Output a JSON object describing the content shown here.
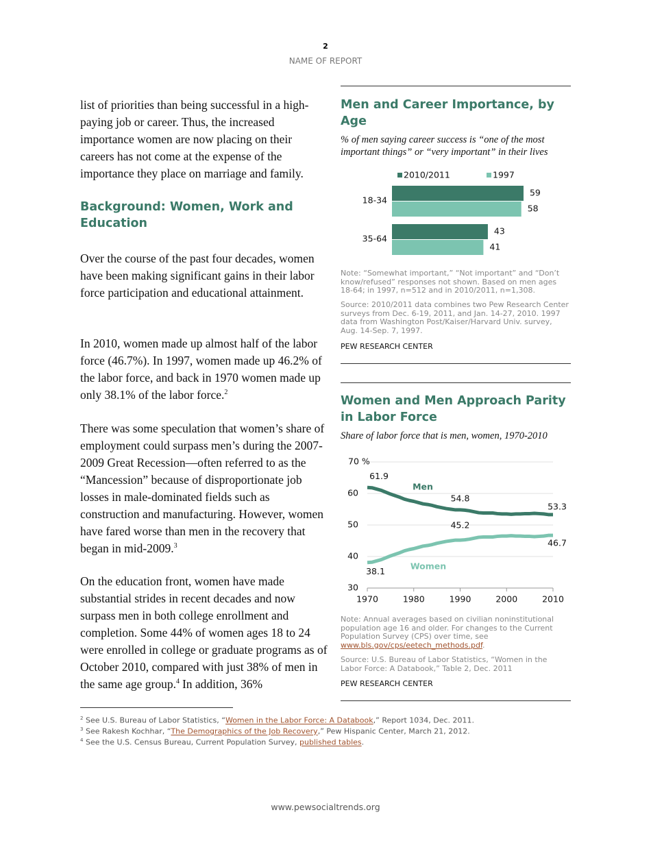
{
  "header": {
    "page_number": "2",
    "report_name": "NAME OF REPORT"
  },
  "body": {
    "intro": "list of priorities than being successful in a high-paying job or career. Thus, the increased importance women are now placing on their careers has not come at the expense of the importance they place on marriage and family.",
    "heading": "Background: Women, Work and Education",
    "paragraphs": [
      {
        "text": "Over the course of the past four decades, women have been making significant gains in their labor force participation and educational attainment."
      },
      {
        "text": "In 2010, women made up almost half of the labor force (46.7%). In 1997, women made up 46.2% of the labor force, and back in 1970 women made up only 38.1% of the labor force.",
        "note": "2"
      },
      {
        "text": "There was some speculation that women’s share of employment could surpass men’s during the 2007-2009 Great Recession—often referred to as the “Mancession” because of disproportionate job losses in male-dominated fields such as construction and manufacturing. However, women have fared worse than men in the recovery that began in mid-2009.",
        "note": "3"
      },
      {
        "text": "On the education front, women have made substantial strides in recent decades and now surpass men in both college enrollment and completion. Some 44% of women ages 18 to 24 were enrolled in college or graduate programs as of October 2010, compared with just 38% of men in the same age group.",
        "note": "4",
        "after": "In addition, 36%"
      }
    ]
  },
  "footnotes": [
    {
      "number": "2",
      "before": "See U.S. Bureau of Labor Statistics, “",
      "link": "Women in the Labor Force: A Databook",
      "after": ",” Report 1034, Dec. 2011."
    },
    {
      "number": "3",
      "before": "See Rakesh Kochhar, “",
      "link": "The Demographics of the Job Recovery",
      "after": ",” Pew Hispanic Center, March 21, 2012."
    },
    {
      "number": "4",
      "before": "See the U.S. Census Bureau, Current Population Survey, ",
      "link": "published tables",
      "after": "."
    }
  ],
  "footer": "www.pewsocialtrends.org",
  "chart_data": [
    {
      "type": "bar",
      "orientation": "horizontal",
      "title": "Men and Career Importance, by Age",
      "subtitle": "% of men saying career success is “one of the most important things” or “very important” in their lives",
      "categories": [
        "18-34",
        "35-64"
      ],
      "series": [
        {
          "name": "2010/2011",
          "color": "#3b7a68",
          "values": [
            59,
            43
          ]
        },
        {
          "name": "1997",
          "color": "#7cc4b0",
          "values": [
            58,
            41
          ]
        }
      ],
      "note": "Note: “Somewhat important,” “Not important” and “Don’t know/refused” responses not shown. Based on men ages 18-64; in 1997, n=512 and in 2010/2011, n=1,308.",
      "source": "Source: 2010/2011 data combines two Pew Research Center surveys from Dec. 6-19, 2011, and Jan. 14-27, 2010. 1997 data from Washington Post/Kaiser/Harvard Univ. survey, Aug. 14-Sep. 7, 1997.",
      "credit": "PEW RESEARCH CENTER"
    },
    {
      "type": "line",
      "title": "Women and Men Approach Parity in Labor Force",
      "subtitle": "Share of labor force that is men, women, 1970-2010",
      "x": [
        1970,
        1971,
        1972,
        1973,
        1974,
        1975,
        1976,
        1977,
        1978,
        1979,
        1980,
        1981,
        1982,
        1983,
        1984,
        1985,
        1986,
        1987,
        1988,
        1989,
        1990,
        1991,
        1992,
        1993,
        1994,
        1995,
        1996,
        1997,
        1998,
        1999,
        2000,
        2001,
        2002,
        2003,
        2004,
        2005,
        2006,
        2007,
        2008,
        2009,
        2010
      ],
      "series": [
        {
          "name": "Men",
          "color": "#3b7a68",
          "values": [
            61.9,
            61.8,
            61.4,
            61.0,
            60.4,
            59.8,
            59.3,
            58.8,
            58.2,
            57.8,
            57.5,
            57.1,
            56.7,
            56.5,
            56.2,
            55.8,
            55.5,
            55.2,
            55.0,
            54.8,
            54.8,
            54.7,
            54.5,
            54.2,
            53.9,
            53.8,
            53.8,
            53.8,
            53.6,
            53.5,
            53.5,
            53.4,
            53.5,
            53.5,
            53.6,
            53.6,
            53.7,
            53.6,
            53.5,
            53.3,
            53.3
          ]
        },
        {
          "name": "Women",
          "color": "#7cc4b0",
          "values": [
            38.1,
            38.2,
            38.6,
            39.0,
            39.6,
            40.2,
            40.7,
            41.2,
            41.8,
            42.2,
            42.5,
            42.9,
            43.3,
            43.5,
            43.8,
            44.2,
            44.5,
            44.8,
            45.0,
            45.2,
            45.2,
            45.3,
            45.5,
            45.8,
            46.1,
            46.2,
            46.2,
            46.2,
            46.4,
            46.5,
            46.5,
            46.6,
            46.5,
            46.5,
            46.4,
            46.4,
            46.3,
            46.4,
            46.5,
            46.7,
            46.7
          ]
        }
      ],
      "xlim": [
        1970,
        2010
      ],
      "xticks": [
        1970,
        1980,
        1990,
        2000,
        2010
      ],
      "ylim": [
        30,
        70
      ],
      "yticks": [
        30,
        40,
        50,
        60,
        {
          "value": 70,
          "label": "70 %"
        }
      ],
      "grid": true,
      "note": {
        "text": "Note: Annual averages based on civilian noninstitutional population age 16 and older. For changes to the Current Population Survey (CPS) over time, see ",
        "link": "www.bls.gov/cps/eetech_methods.pdf",
        "after": "."
      },
      "source": "Source: U.S. Bureau of Labor Statistics, “Women in the Labor Force: A Databook,” Table 2, Dec. 2011",
      "credit": "PEW RESEARCH CENTER"
    }
  ]
}
